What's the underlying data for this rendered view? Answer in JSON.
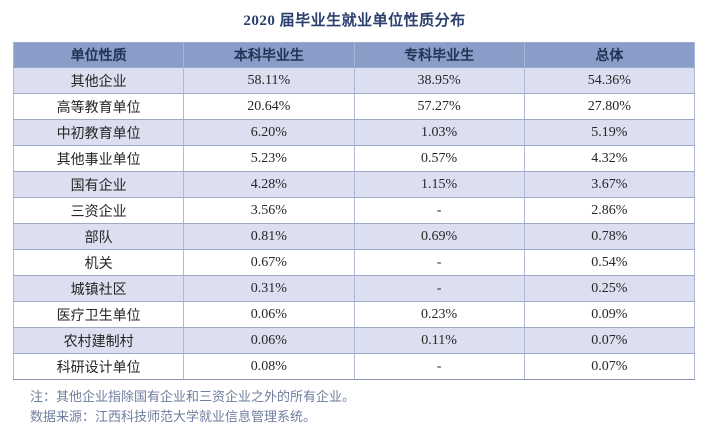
{
  "title": "2020 届毕业生就业单位性质分布",
  "chart_data": {
    "type": "table",
    "title": "2020 届毕业生就业单位性质分布",
    "columns": [
      "单位性质",
      "本科毕业生",
      "专科毕业生",
      "总体"
    ],
    "rows": [
      [
        "其他企业",
        "58.11%",
        "38.95%",
        "54.36%"
      ],
      [
        "高等教育单位",
        "20.64%",
        "57.27%",
        "27.80%"
      ],
      [
        "中初教育单位",
        "6.20%",
        "1.03%",
        "5.19%"
      ],
      [
        "其他事业单位",
        "5.23%",
        "0.57%",
        "4.32%"
      ],
      [
        "国有企业",
        "4.28%",
        "1.15%",
        "3.67%"
      ],
      [
        "三资企业",
        "3.56%",
        "-",
        "2.86%"
      ],
      [
        "部队",
        "0.81%",
        "0.69%",
        "0.78%"
      ],
      [
        "机关",
        "0.67%",
        "-",
        "0.54%"
      ],
      [
        "城镇社区",
        "0.31%",
        "-",
        "0.25%"
      ],
      [
        "医疗卫生单位",
        "0.06%",
        "0.23%",
        "0.09%"
      ],
      [
        "农村建制村",
        "0.06%",
        "0.11%",
        "0.07%"
      ],
      [
        "科研设计单位",
        "0.08%",
        "-",
        "0.07%"
      ]
    ],
    "missing_value_marker": "-",
    "layout": "4 equal-width centered columns, alternating row shading starting shaded"
  },
  "notes": [
    "注：其他企业指除国有企业和三资企业之外的所有企业。",
    "数据来源：江西科技师范大学就业信息管理系统。"
  ],
  "colors": {
    "title_text": "#2b3f6e",
    "header_bg": "#8a9cc8",
    "header_text": "#1f3355",
    "header_border": "#9ca9cf",
    "row_alt_bg": "#dbdfef",
    "cell_text": "#262626",
    "border": "#9faacb",
    "note_text": "#6e7e9e"
  }
}
